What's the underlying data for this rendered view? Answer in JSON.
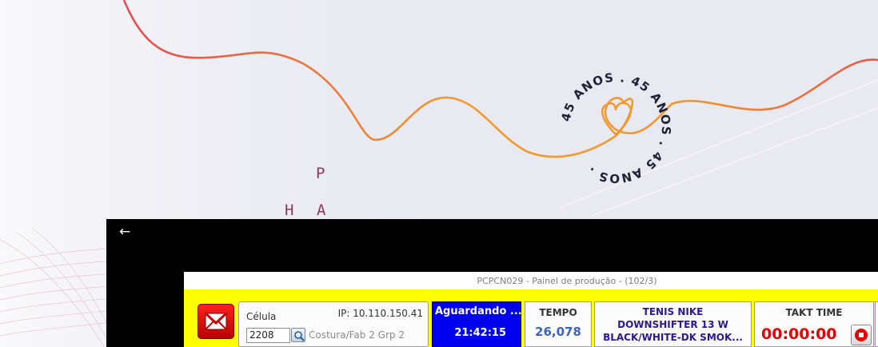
{
  "wallpaper": {
    "badge_text": "45 ANOS . 45 ANOS . 45 ANOS . ",
    "letters": [
      "P",
      "H",
      "A"
    ],
    "colors": {
      "curve_start": "#e04e52",
      "curve_end": "#f29a2e",
      "badge_text": "#202036"
    }
  },
  "window": {
    "back_icon": "←"
  },
  "panel": {
    "title": "PCPCN029 - Painel de produção - (102/3)",
    "mail_icon": "mail-icon",
    "cell": {
      "label": "Célula",
      "ip": "IP: 10.110.150.41",
      "value": "2208",
      "description": "Costura/Fab 2 Grp  2"
    },
    "status": {
      "label": "Aguardando ...",
      "time": "21:42:15",
      "color": "#0000f0"
    },
    "tempo": {
      "label": "TEMPO",
      "value": "26,078"
    },
    "product": {
      "lines": [
        "TENIS NIKE",
        "DOWNSHIFTER 13 W",
        "BLACK/WHITE-DK SMOK..."
      ]
    },
    "takt": {
      "label": "TAKT TIME",
      "value": "00:00:00"
    },
    "colors": {
      "bar": "#ffff00",
      "takt_value": "#e40000",
      "tempo_value": "#3b64c8",
      "product_text": "#2a1a8f"
    }
  }
}
